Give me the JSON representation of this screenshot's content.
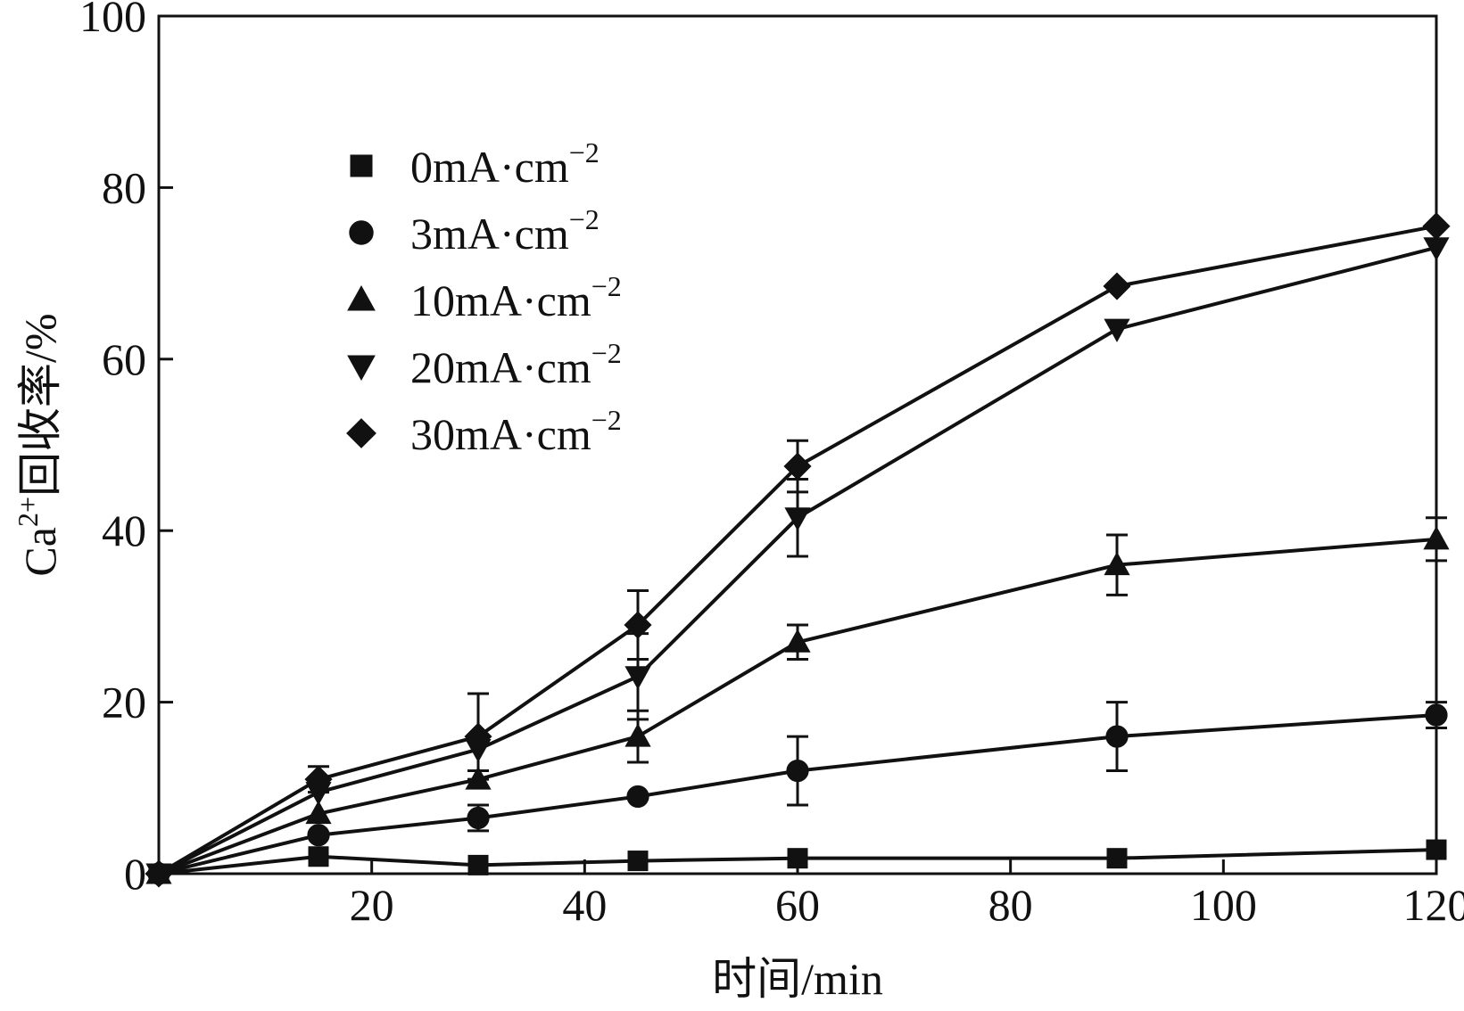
{
  "chart_data": {
    "type": "line",
    "title": "",
    "xlabel": "时间/min",
    "ylabel_parts": {
      "base": "Ca",
      "sup": "2+",
      "rest": "回收率/%"
    },
    "xlim": [
      0,
      120
    ],
    "ylim": [
      0,
      100
    ],
    "x_ticks": [
      20,
      40,
      60,
      80,
      100,
      120
    ],
    "y_ticks": [
      0,
      20,
      40,
      60,
      80,
      100
    ],
    "legend_position": "upper-left",
    "legend_unit": {
      "base": "mA·cm",
      "sup": "−2"
    },
    "grid": false,
    "x": [
      0,
      15,
      30,
      45,
      60,
      90,
      120
    ],
    "series": [
      {
        "name": "0mA·cm−2",
        "label_num": "0",
        "marker": "square",
        "values": [
          0,
          2,
          1,
          1.5,
          1.8,
          1.8,
          2.8
        ],
        "errors": [
          0,
          0,
          0,
          0,
          0,
          0,
          0
        ]
      },
      {
        "name": "3mA·cm−2",
        "label_num": "3",
        "marker": "circle",
        "values": [
          0,
          4.5,
          6.5,
          9,
          12,
          16,
          18.5
        ],
        "errors": [
          0,
          0,
          1.5,
          0,
          4,
          4,
          1.5
        ]
      },
      {
        "name": "10mA·cm−2",
        "label_num": "10",
        "marker": "triangle-up",
        "values": [
          0,
          7,
          11,
          16,
          27,
          36,
          39
        ],
        "errors": [
          0,
          0,
          1,
          3,
          2,
          3.5,
          2.5
        ]
      },
      {
        "name": "20mA·cm−2",
        "label_num": "20",
        "marker": "triangle-down",
        "values": [
          0,
          9.5,
          14.5,
          23,
          41.5,
          63.5,
          73
        ],
        "errors": [
          0,
          0,
          0,
          5,
          4.5,
          0,
          0
        ]
      },
      {
        "name": "30mA·cm−2",
        "label_num": "30",
        "marker": "diamond",
        "values": [
          0,
          11,
          16,
          29,
          47.5,
          68.5,
          75.5
        ],
        "errors": [
          0,
          1.5,
          5,
          4,
          3,
          0,
          0
        ]
      }
    ]
  }
}
